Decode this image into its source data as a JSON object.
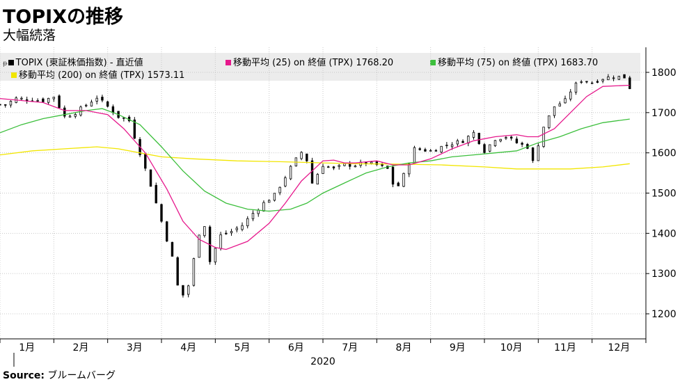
{
  "title": "TOPIXの推移",
  "subtitle": "大幅続落",
  "source_label": "Source:",
  "source_value": "ブルームバーグ",
  "colors": {
    "candle": "#000000",
    "ma25": "#e6188c",
    "ma75": "#3cbf3c",
    "ma200": "#f2e600",
    "legend_bg": "#ececec"
  },
  "chart_data": {
    "type": "candlestick",
    "title": "TOPIXの推移",
    "subtitle": "大幅続落",
    "x_labels": [
      "1月",
      "2月",
      "3月",
      "4月",
      "5月",
      "6月",
      "7月",
      "8月",
      "9月",
      "10月",
      "11月",
      "12月"
    ],
    "year_label": "2020",
    "y_ticks": [
      1200,
      1300,
      1400,
      1500,
      1600,
      1700,
      1800
    ],
    "ylim": [
      1200,
      1860
    ],
    "grid": true,
    "legend_position": "top",
    "legend": [
      {
        "name": "TOPIX (東証株価指数) - 直近値",
        "value": "",
        "color": "#000000"
      },
      {
        "name": "移動平均 (25)  on 終値 (TPX)",
        "value": "1768.20",
        "color": "#e6188c"
      },
      {
        "name": "移動平均 (75)  on 終値 (TPX)",
        "value": "1683.70",
        "color": "#3cbf3c"
      },
      {
        "name": "移動平均 (200)  on 終値 (TPX)",
        "value": "1573.11",
        "color": "#f2e600"
      }
    ],
    "close_anchors": [
      [
        1,
        1720
      ],
      [
        3,
        1735
      ],
      [
        8,
        1730
      ],
      [
        10,
        1740
      ],
      [
        12,
        1690
      ],
      [
        14,
        1700
      ],
      [
        18,
        1738
      ],
      [
        20,
        1715
      ],
      [
        22,
        1690
      ],
      [
        24,
        1680
      ],
      [
        26,
        1600
      ],
      [
        28,
        1520
      ],
      [
        30,
        1430
      ],
      [
        32,
        1340
      ],
      [
        33.5,
        1235
      ],
      [
        35,
        1270
      ],
      [
        37,
        1400
      ],
      [
        38,
        1420
      ],
      [
        39,
        1330
      ],
      [
        41,
        1395
      ],
      [
        43,
        1405
      ],
      [
        45,
        1420
      ],
      [
        47,
        1450
      ],
      [
        49,
        1475
      ],
      [
        51,
        1495
      ],
      [
        53,
        1540
      ],
      [
        54.5,
        1575
      ],
      [
        56.5,
        1610
      ],
      [
        58,
        1525
      ],
      [
        60,
        1570
      ],
      [
        62,
        1560
      ],
      [
        64,
        1570
      ],
      [
        66,
        1570
      ],
      [
        68,
        1575
      ],
      [
        70,
        1570
      ],
      [
        72,
        1560
      ],
      [
        73.5,
        1505
      ],
      [
        75,
        1545
      ],
      [
        77,
        1610
      ],
      [
        80,
        1605
      ],
      [
        83,
        1620
      ],
      [
        86,
        1630
      ],
      [
        88,
        1650
      ],
      [
        90,
        1605
      ],
      [
        92,
        1635
      ],
      [
        94,
        1640
      ],
      [
        96,
        1625
      ],
      [
        98,
        1615
      ],
      [
        99,
        1578
      ],
      [
        101,
        1665
      ],
      [
        103,
        1715
      ],
      [
        105,
        1730
      ],
      [
        106.5,
        1765
      ],
      [
        108,
        1780
      ],
      [
        110,
        1775
      ],
      [
        112,
        1785
      ],
      [
        114,
        1790
      ],
      [
        116,
        1788
      ],
      [
        117,
        1762
      ]
    ],
    "ma25": [
      [
        0,
        1735
      ],
      [
        8,
        1725
      ],
      [
        12,
        1705
      ],
      [
        16,
        1705
      ],
      [
        20,
        1695
      ],
      [
        23,
        1660
      ],
      [
        27,
        1600
      ],
      [
        31,
        1510
      ],
      [
        34,
        1430
      ],
      [
        37,
        1385
      ],
      [
        40,
        1365
      ],
      [
        42,
        1360
      ],
      [
        46,
        1380
      ],
      [
        50,
        1425
      ],
      [
        53,
        1475
      ],
      [
        56,
        1530
      ],
      [
        58,
        1555
      ],
      [
        60,
        1580
      ],
      [
        62,
        1582
      ],
      [
        64,
        1575
      ],
      [
        66,
        1575
      ],
      [
        70,
        1580
      ],
      [
        73,
        1570
      ],
      [
        76,
        1570
      ],
      [
        80,
        1585
      ],
      [
        84,
        1610
      ],
      [
        88,
        1630
      ],
      [
        92,
        1640
      ],
      [
        96,
        1645
      ],
      [
        98,
        1640
      ],
      [
        100,
        1640
      ],
      [
        103,
        1660
      ],
      [
        106,
        1700
      ],
      [
        109,
        1740
      ],
      [
        112,
        1765
      ],
      [
        117,
        1768
      ]
    ],
    "ma75": [
      [
        0,
        1650
      ],
      [
        4,
        1670
      ],
      [
        8,
        1685
      ],
      [
        12,
        1695
      ],
      [
        16,
        1705
      ],
      [
        19,
        1710
      ],
      [
        22,
        1695
      ],
      [
        26,
        1670
      ],
      [
        30,
        1615
      ],
      [
        34,
        1555
      ],
      [
        38,
        1505
      ],
      [
        42,
        1475
      ],
      [
        46,
        1460
      ],
      [
        50,
        1455
      ],
      [
        54,
        1460
      ],
      [
        57,
        1475
      ],
      [
        60,
        1500
      ],
      [
        64,
        1525
      ],
      [
        68,
        1550
      ],
      [
        72,
        1565
      ],
      [
        76,
        1575
      ],
      [
        80,
        1580
      ],
      [
        84,
        1590
      ],
      [
        88,
        1595
      ],
      [
        92,
        1600
      ],
      [
        96,
        1605
      ],
      [
        100,
        1625
      ],
      [
        104,
        1640
      ],
      [
        108,
        1660
      ],
      [
        112,
        1675
      ],
      [
        117,
        1684
      ]
    ],
    "ma200": [
      [
        0,
        1595
      ],
      [
        6,
        1605
      ],
      [
        12,
        1610
      ],
      [
        18,
        1615
      ],
      [
        22,
        1610
      ],
      [
        26,
        1600
      ],
      [
        30,
        1590
      ],
      [
        36,
        1585
      ],
      [
        44,
        1580
      ],
      [
        52,
        1578
      ],
      [
        60,
        1575
      ],
      [
        66,
        1573
      ],
      [
        74,
        1572
      ],
      [
        82,
        1570
      ],
      [
        90,
        1565
      ],
      [
        96,
        1560
      ],
      [
        100,
        1560
      ],
      [
        106,
        1560
      ],
      [
        112,
        1565
      ],
      [
        117,
        1573
      ]
    ]
  }
}
